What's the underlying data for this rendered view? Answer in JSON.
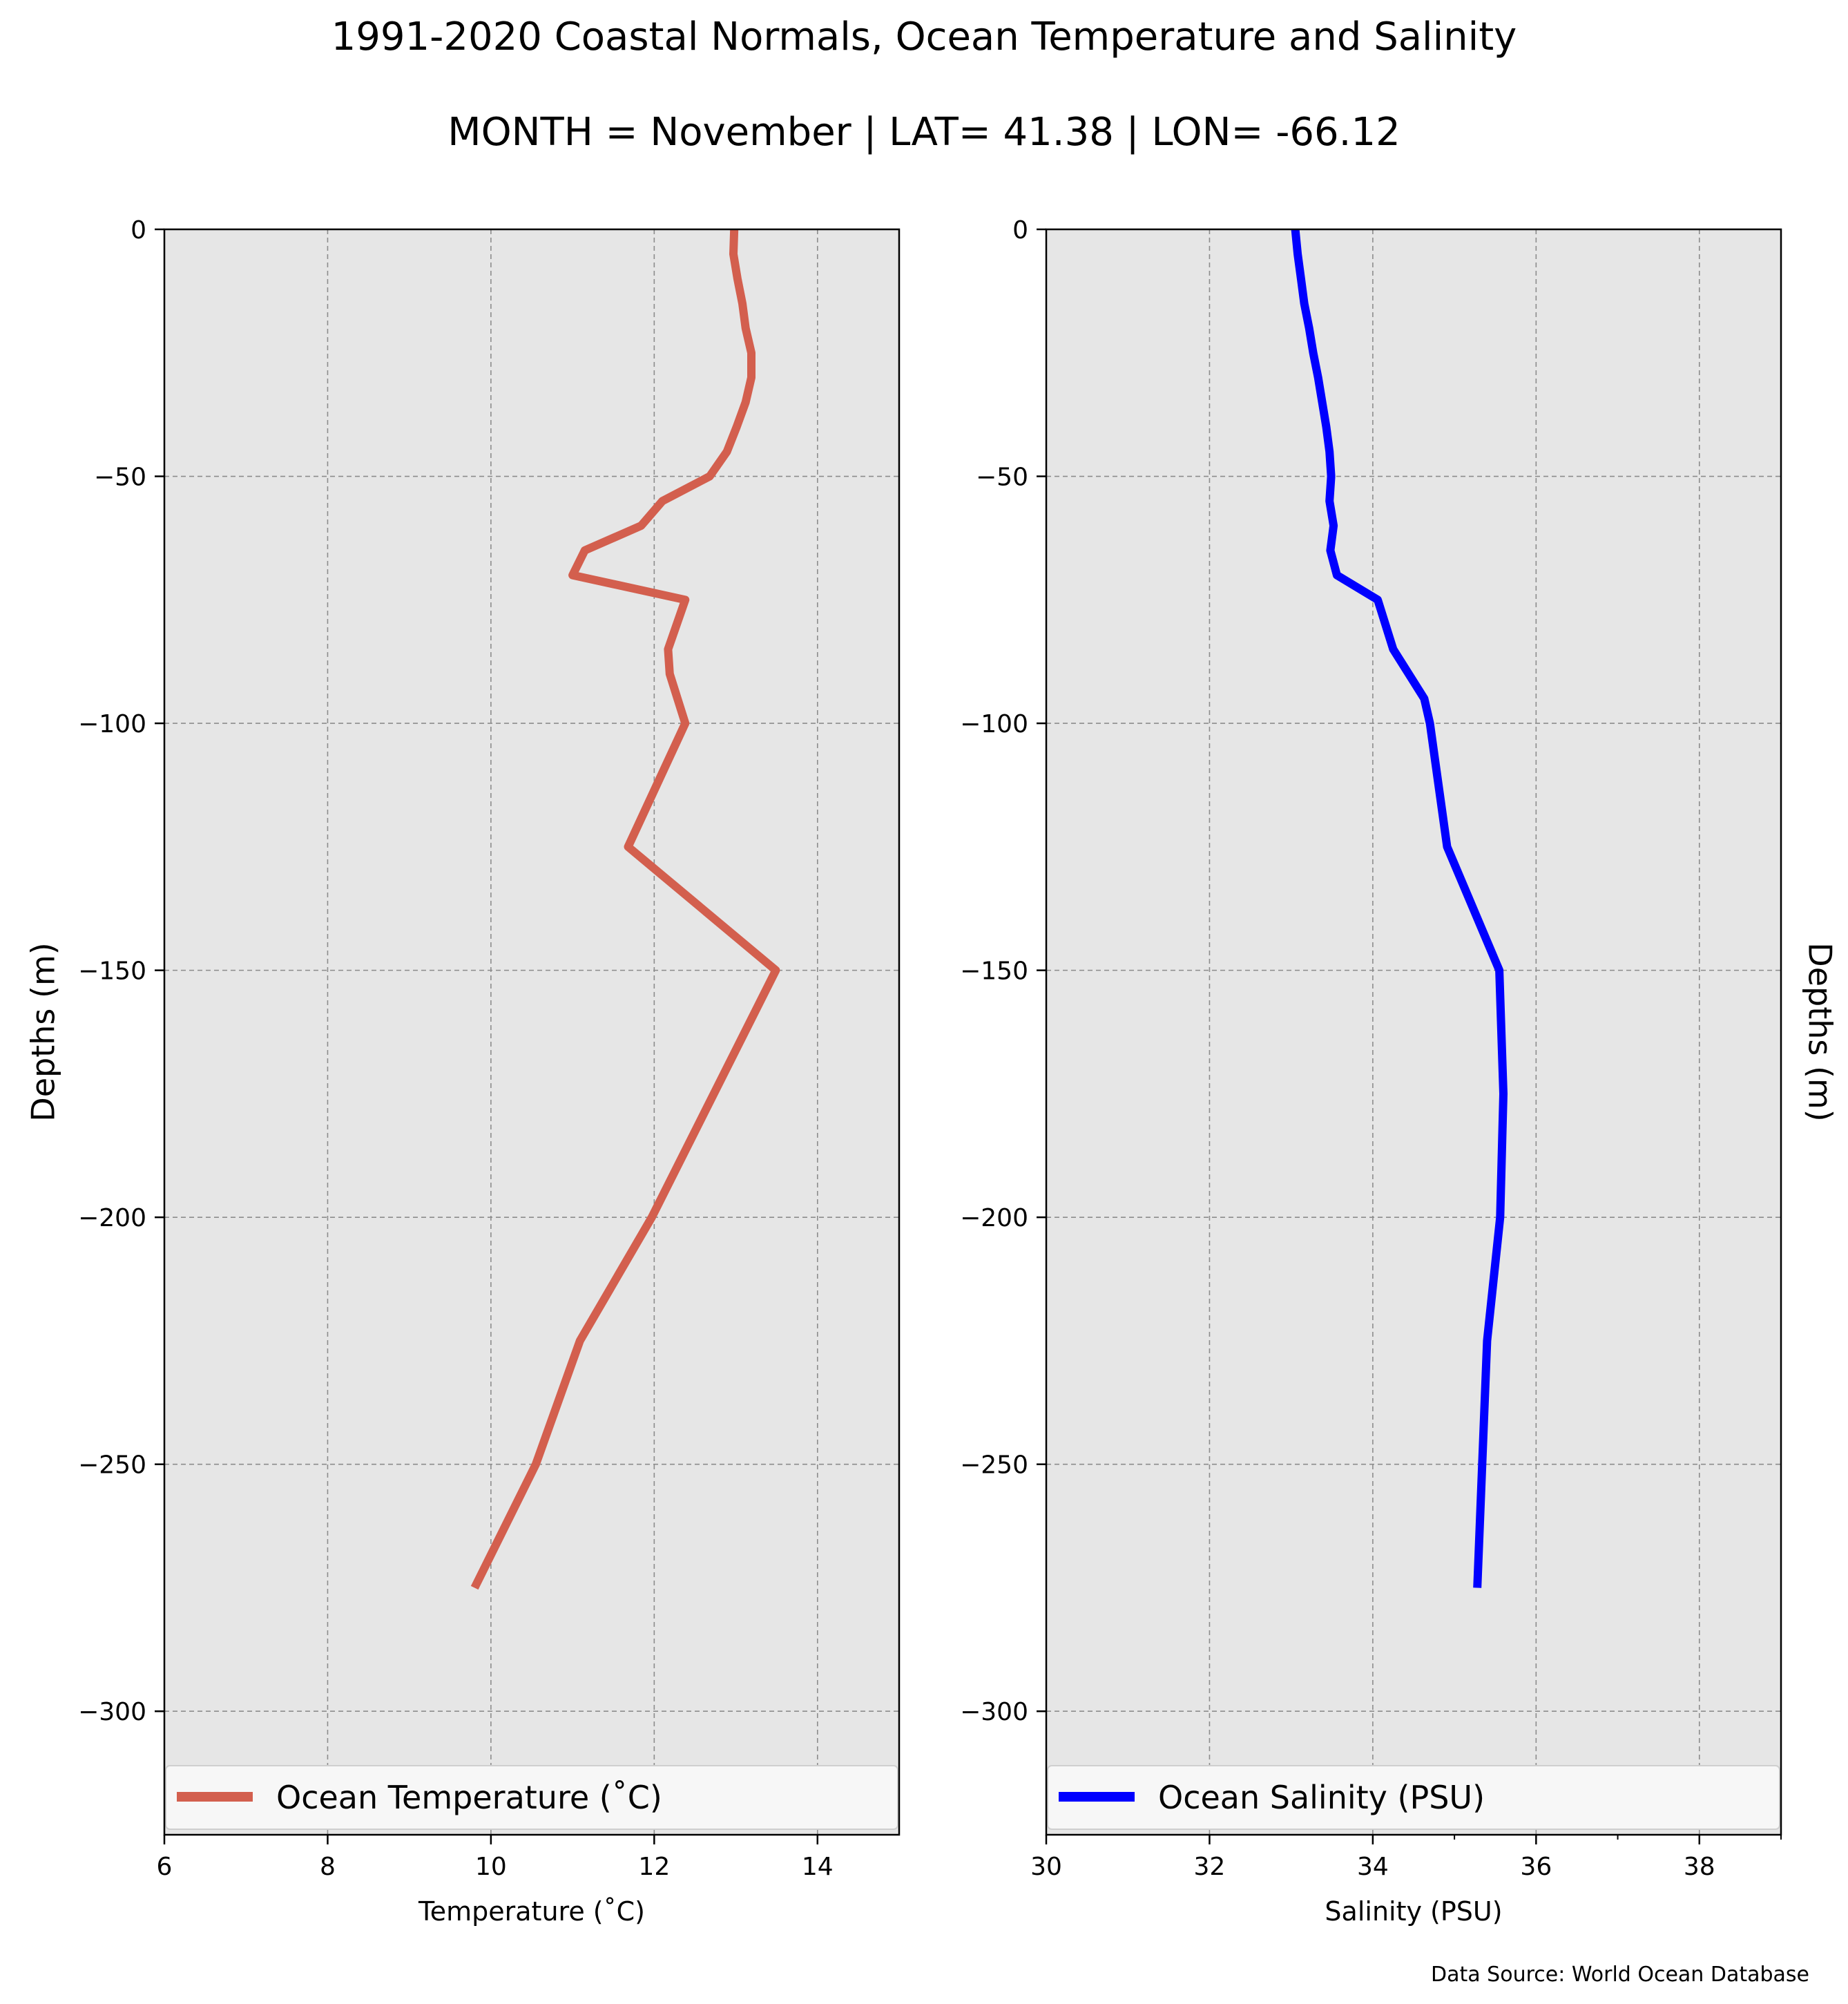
{
  "title": "1991-2020 Coastal Normals, Ocean Temperature and Salinity",
  "subtitle": "MONTH = November | LAT= 41.38 | LON= -66.12",
  "source_note": "Data Source: World Ocean Database",
  "chart_data": [
    {
      "type": "line",
      "xlabel": "Temperature ($^\\circ$C)",
      "xlabel_display": "Temperature (˚C)",
      "ylabel": "Depths (m)",
      "xlim": [
        6,
        15
      ],
      "ylim": [
        -325,
        0
      ],
      "xticks": [
        6,
        8,
        10,
        12,
        14
      ],
      "yticks": [
        0,
        -50,
        -100,
        -150,
        -200,
        -250,
        -300
      ],
      "ytick_labels": [
        "0",
        "−50",
        "−100",
        "−150",
        "−200",
        "−250",
        "−300"
      ],
      "grid": true,
      "legend": "bottom (expanded across axes)",
      "series": [
        {
          "name": "Ocean Temperature ($^\\circ$C)",
          "name_display": "Ocean Temperature (˚C)",
          "color": "#d35f4e",
          "x": [
            12.98,
            12.97,
            13.02,
            13.08,
            13.12,
            13.19,
            13.19,
            13.12,
            13.01,
            12.89,
            12.68,
            12.1,
            11.84,
            11.15,
            11.0,
            12.38,
            12.17,
            12.19,
            12.38,
            11.68,
            13.49,
            11.97,
            11.09,
            10.55,
            9.8
          ],
          "y": [
            0,
            -5,
            -10,
            -15,
            -20,
            -25,
            -30,
            -35,
            -40,
            -45,
            -50,
            -55,
            -60,
            -65,
            -70,
            -75,
            -85,
            -90,
            -100,
            -125,
            -150,
            -200,
            -225,
            -250,
            -275
          ]
        }
      ]
    },
    {
      "type": "line",
      "xlabel": "Salinity (PSU)",
      "ylabel": "Depths (m)",
      "xlim": [
        30,
        39
      ],
      "ylim": [
        -325,
        0
      ],
      "xticks": [
        30,
        32,
        34,
        36,
        38
      ],
      "yticks": [
        0,
        -50,
        -100,
        -150,
        -200,
        -250,
        -300
      ],
      "ytick_labels": [
        "0",
        "−50",
        "−100",
        "−150",
        "−200",
        "−250",
        "−300"
      ],
      "grid": true,
      "legend": "bottom (expanded across axes)",
      "series": [
        {
          "name": "Ocean Salinity (PSU)",
          "color": "#0000ff",
          "x": [
            33.05,
            33.08,
            33.12,
            33.16,
            33.22,
            33.27,
            33.33,
            33.38,
            33.43,
            33.47,
            33.49,
            33.47,
            33.52,
            33.48,
            33.56,
            34.06,
            34.25,
            34.63,
            34.7,
            34.91,
            35.55,
            35.6,
            35.56,
            35.4,
            35.28
          ],
          "y": [
            0,
            -5,
            -10,
            -15,
            -20,
            -25,
            -30,
            -35,
            -40,
            -45,
            -50,
            -55,
            -60,
            -65,
            -70,
            -75,
            -85,
            -95,
            -100,
            -125,
            -150,
            -175,
            -200,
            -225,
            -275
          ]
        }
      ]
    }
  ]
}
